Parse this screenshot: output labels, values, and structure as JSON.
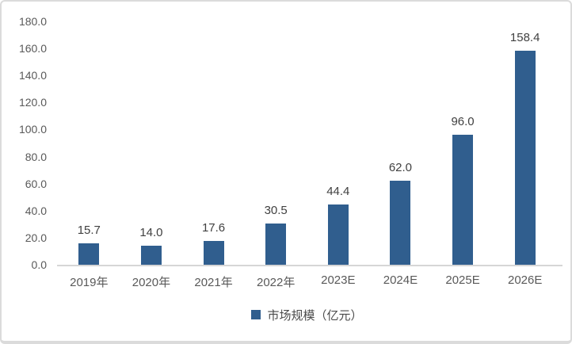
{
  "chart_data": {
    "type": "bar",
    "title": "",
    "categories": [
      "2019年",
      "2020年",
      "2021年",
      "2022年",
      "2023E",
      "2024E",
      "2025E",
      "2026E"
    ],
    "values": [
      15.7,
      14.0,
      17.6,
      30.5,
      44.4,
      62.0,
      96.0,
      158.4
    ],
    "value_labels": [
      "15.7",
      "14.0",
      "17.6",
      "30.5",
      "44.4",
      "62.0",
      "96.0",
      "158.4"
    ],
    "legend_label": "市场规模（亿元）",
    "legend_position": "bottom",
    "xlabel": "",
    "ylabel": "",
    "ylim": [
      0,
      180
    ],
    "ytick_step": 20,
    "yticks": [
      "180.0",
      "160.0",
      "140.0",
      "120.0",
      "100.0",
      "80.0",
      "60.0",
      "40.0",
      "20.0",
      "0.0"
    ],
    "grid": false,
    "bar_color": "#305E8E",
    "axis_line_color": "#D6D6D6",
    "tick_text_color": "#595959",
    "value_text_color": "#404040",
    "frame_border_color": "#DBDBDB",
    "background_color": "#FFFFFF"
  }
}
